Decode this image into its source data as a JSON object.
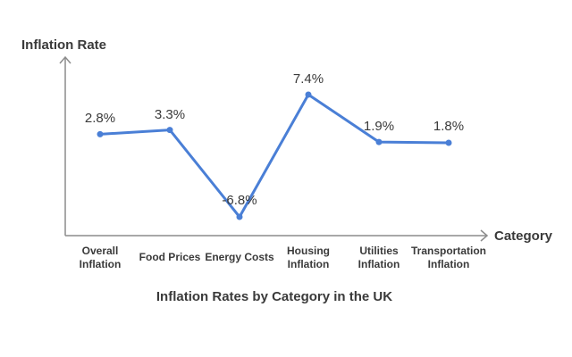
{
  "chart_data": {
    "type": "line",
    "title": "Inflation Rates by Category in the UK",
    "xlabel": "Category",
    "ylabel": "Inflation Rate",
    "categories": [
      [
        "Overall",
        "Inflation"
      ],
      [
        "Food Prices"
      ],
      [
        "Energy Costs"
      ],
      [
        "Housing",
        "Inflation"
      ],
      [
        "Utilities",
        "Inflation"
      ],
      [
        "Transportation",
        "Inflation"
      ]
    ],
    "values": [
      2.8,
      3.3,
      -6.8,
      7.4,
      1.9,
      1.8
    ],
    "data_labels": [
      "2.8%",
      "3.3%",
      "-6.8%",
      "7.4%",
      "1.9%",
      "1.8%"
    ],
    "grid": false,
    "legend": "none",
    "line_color": "#4a7fd6"
  }
}
